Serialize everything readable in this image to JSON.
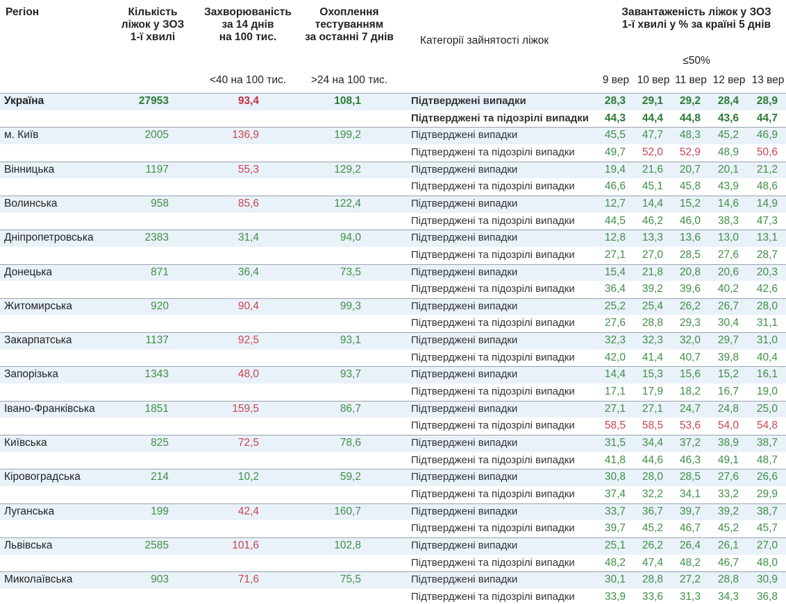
{
  "header": {
    "region": "Регіон",
    "beds": [
      "Кількість",
      "ліжок у ЗОЗ",
      "1-ї хвилі"
    ],
    "incidence": [
      "Захворюваність",
      "за 14 днів",
      "на 100 тис."
    ],
    "testing": [
      "Охоплення",
      "тестуванням",
      "за останні 7 днів"
    ],
    "category": "Категорії зайнятості ліжок",
    "load": [
      "Завантаженість ліжок у ЗОЗ",
      "1-ї хвилі у % за країні 5 днів"
    ],
    "incidence_note": "<40 на 100 тис.",
    "testing_note": ">24 на 100 тис.",
    "load_note": "≤50%",
    "dates": [
      "9 вер",
      "10 вер",
      "11 вер",
      "12 вер",
      "13 вер"
    ]
  },
  "categories": [
    "Підтверджені випадки",
    "Підтверджені та підозрілі випадки"
  ],
  "incidence_limit": 40,
  "load_limit": 50,
  "colors": {
    "good": "#3f8f45",
    "bad": "#c94450",
    "total_good": "#2a7a33",
    "total_bad": "#c0303e"
  },
  "rows": [
    {
      "region": "Україна",
      "beds": "27953",
      "incidence": "93,4",
      "testing": "108,1",
      "confirmed": [
        "28,3",
        "29,1",
        "29,2",
        "28,4",
        "28,9"
      ],
      "suspected": [
        "44,3",
        "44,4",
        "44,8",
        "43,6",
        "44,7"
      ]
    },
    {
      "region": "м. Київ",
      "beds": "2005",
      "incidence": "136,9",
      "testing": "199,2",
      "confirmed": [
        "45,5",
        "47,7",
        "48,3",
        "45,2",
        "46,9"
      ],
      "suspected": [
        "49,7",
        "52,0",
        "52,9",
        "48,9",
        "50,6"
      ]
    },
    {
      "region": "Вінницька",
      "beds": "1197",
      "incidence": "55,3",
      "testing": "129,2",
      "confirmed": [
        "19,4",
        "21,6",
        "20,7",
        "20,1",
        "21,2"
      ],
      "suspected": [
        "46,6",
        "45,1",
        "45,8",
        "43,9",
        "48,6"
      ]
    },
    {
      "region": "Волинська",
      "beds": "958",
      "incidence": "85,6",
      "testing": "122,4",
      "confirmed": [
        "12,7",
        "14,4",
        "15,2",
        "14,6",
        "14,9"
      ],
      "suspected": [
        "44,5",
        "46,2",
        "46,0",
        "38,3",
        "47,3"
      ]
    },
    {
      "region": "Дніпропетровська",
      "beds": "2383",
      "incidence": "31,4",
      "testing": "94,0",
      "confirmed": [
        "12,8",
        "13,3",
        "13,6",
        "13,0",
        "13,1"
      ],
      "suspected": [
        "27,1",
        "27,0",
        "28,5",
        "27,6",
        "28,7"
      ]
    },
    {
      "region": "Донецька",
      "beds": "871",
      "incidence": "36,4",
      "testing": "73,5",
      "confirmed": [
        "15,4",
        "21,8",
        "20,8",
        "20,6",
        "20,3"
      ],
      "suspected": [
        "36,4",
        "39,2",
        "39,6",
        "40,2",
        "42,6"
      ]
    },
    {
      "region": "Житомирська",
      "beds": "920",
      "incidence": "90,4",
      "testing": "99,3",
      "confirmed": [
        "25,2",
        "25,4",
        "26,2",
        "26,7",
        "28,0"
      ],
      "suspected": [
        "27,6",
        "28,8",
        "29,3",
        "30,4",
        "31,1"
      ]
    },
    {
      "region": "Закарпатська",
      "beds": "1137",
      "incidence": "92,5",
      "testing": "93,1",
      "confirmed": [
        "32,3",
        "32,3",
        "32,0",
        "29,7",
        "31,0"
      ],
      "suspected": [
        "42,0",
        "41,4",
        "40,7",
        "39,8",
        "40,4"
      ]
    },
    {
      "region": "Запорізька",
      "beds": "1343",
      "incidence": "48,0",
      "testing": "93,7",
      "confirmed": [
        "14,4",
        "15,3",
        "15,6",
        "15,2",
        "16,1"
      ],
      "suspected": [
        "17,1",
        "17,9",
        "18,2",
        "16,7",
        "19,0"
      ]
    },
    {
      "region": "Івано-Франківська",
      "beds": "1851",
      "incidence": "159,5",
      "testing": "86,7",
      "confirmed": [
        "27,1",
        "27,1",
        "24,7",
        "24,8",
        "25,0"
      ],
      "suspected": [
        "58,5",
        "58,5",
        "53,6",
        "54,0",
        "54,8"
      ]
    },
    {
      "region": "Київська",
      "beds": "825",
      "incidence": "72,5",
      "testing": "78,6",
      "confirmed": [
        "31,5",
        "34,4",
        "37,2",
        "38,9",
        "38,7"
      ],
      "suspected": [
        "41,8",
        "44,6",
        "46,3",
        "49,1",
        "48,7"
      ]
    },
    {
      "region": "Кіровоградська",
      "beds": "214",
      "incidence": "10,2",
      "testing": "59,2",
      "confirmed": [
        "30,8",
        "28,0",
        "28,5",
        "27,6",
        "26,6"
      ],
      "suspected": [
        "37,4",
        "32,2",
        "34,1",
        "33,2",
        "29,9"
      ]
    },
    {
      "region": "Луганська",
      "beds": "199",
      "incidence": "42,4",
      "testing": "160,7",
      "confirmed": [
        "33,7",
        "36,7",
        "39,7",
        "39,2",
        "38,7"
      ],
      "suspected": [
        "39,7",
        "45,2",
        "46,7",
        "45,2",
        "45,7"
      ]
    },
    {
      "region": "Львівська",
      "beds": "2585",
      "incidence": "101,6",
      "testing": "102,8",
      "confirmed": [
        "25,1",
        "26,2",
        "26,4",
        "26,1",
        "27,0"
      ],
      "suspected": [
        "48,2",
        "47,4",
        "48,2",
        "46,7",
        "48,0"
      ]
    },
    {
      "region": "Миколаївська",
      "beds": "903",
      "incidence": "71,6",
      "testing": "75,5",
      "confirmed": [
        "30,1",
        "28,8",
        "27,2",
        "28,8",
        "30,9"
      ],
      "suspected": [
        "33,9",
        "33,6",
        "31,3",
        "34,3",
        "36,8"
      ]
    }
  ]
}
